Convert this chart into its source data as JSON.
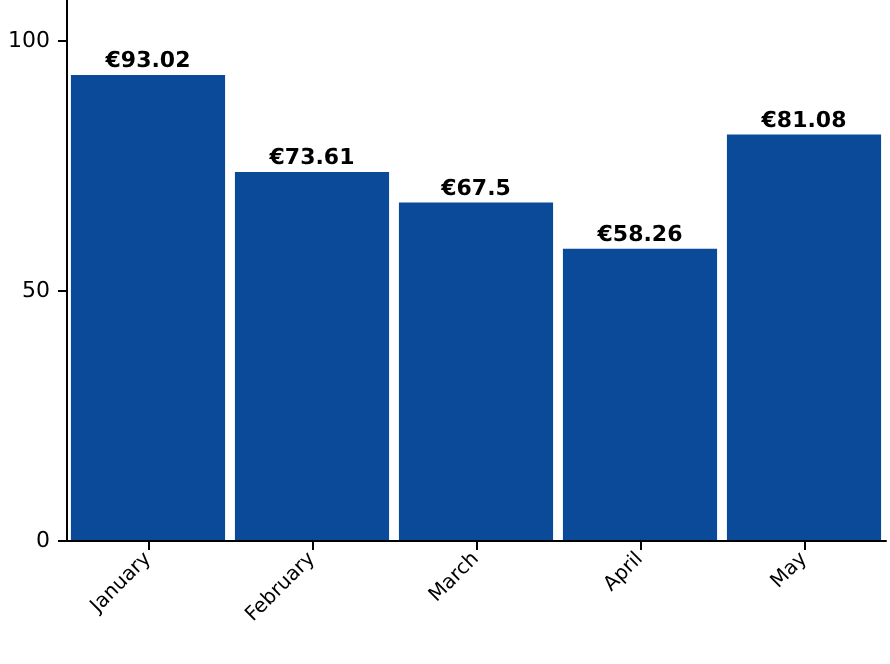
{
  "chart_data": {
    "type": "bar",
    "categories": [
      "January",
      "February",
      "March",
      "April",
      "May"
    ],
    "values": [
      93.02,
      73.61,
      67.5,
      58.26,
      81.08
    ],
    "value_labels": [
      "€93.02",
      "€73.61",
      "€67.5",
      "€58.26",
      "€81.08"
    ],
    "color": "#0b4a99",
    "ylim": [
      0,
      108
    ],
    "yticks": [
      0,
      50,
      100
    ]
  }
}
